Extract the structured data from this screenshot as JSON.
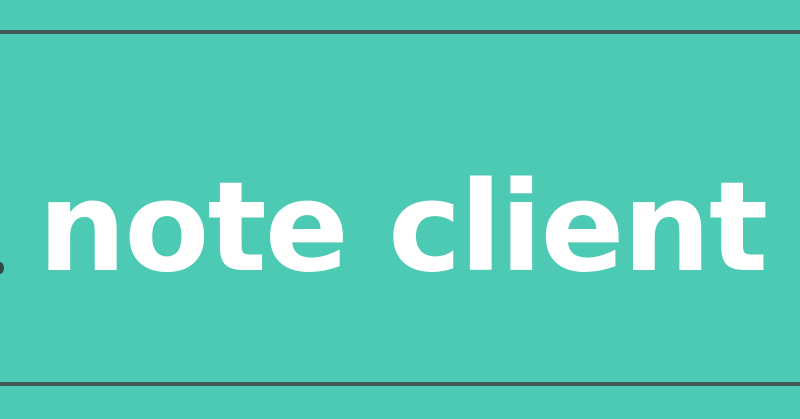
{
  "banner": {
    "title": "note client",
    "background_color": "#4ccab3",
    "text_color": "#ffffff",
    "rule_color": "#3f5a55"
  }
}
